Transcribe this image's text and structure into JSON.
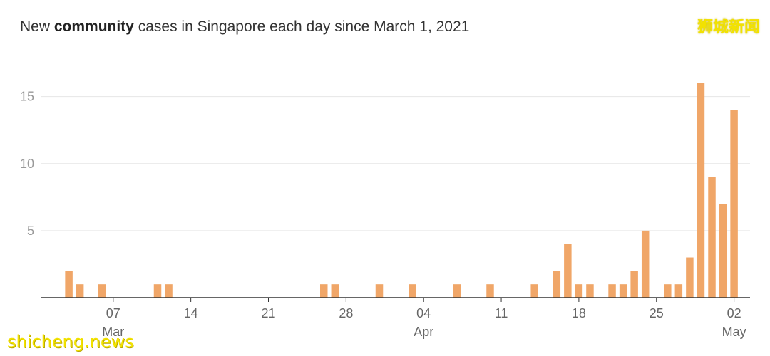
{
  "title": {
    "prefix": "New ",
    "bold": "community",
    "suffix": " cases in Singapore each day since March 1, 2021"
  },
  "watermarks": {
    "top_right": "狮城新闻",
    "bottom_left": "shicheng.news"
  },
  "colors": {
    "bar": "#f0a668",
    "grid": "#e6e6e6",
    "axis": "#333333"
  },
  "chart_data": {
    "type": "bar",
    "title": "New community cases in Singapore each day since March 1, 2021",
    "xlabel": "",
    "ylabel": "",
    "ylim": [
      0,
      17
    ],
    "yticks": [
      5,
      10,
      15
    ],
    "grid": true,
    "legend": "none",
    "x_start": "2021-03-01",
    "x_end": "2021-05-03",
    "xticks": [
      {
        "date": "2021-03-07",
        "label": "07",
        "month": "Mar"
      },
      {
        "date": "2021-03-14",
        "label": "14",
        "month": ""
      },
      {
        "date": "2021-03-21",
        "label": "21",
        "month": ""
      },
      {
        "date": "2021-03-28",
        "label": "28",
        "month": ""
      },
      {
        "date": "2021-04-04",
        "label": "04",
        "month": "Apr"
      },
      {
        "date": "2021-04-11",
        "label": "11",
        "month": ""
      },
      {
        "date": "2021-04-18",
        "label": "18",
        "month": ""
      },
      {
        "date": "2021-04-25",
        "label": "25",
        "month": ""
      },
      {
        "date": "2021-05-02",
        "label": "02",
        "month": "May"
      }
    ],
    "series": [
      {
        "points": [
          {
            "date": "2021-03-03",
            "value": 2
          },
          {
            "date": "2021-03-04",
            "value": 1
          },
          {
            "date": "2021-03-06",
            "value": 1
          },
          {
            "date": "2021-03-11",
            "value": 1
          },
          {
            "date": "2021-03-12",
            "value": 1
          },
          {
            "date": "2021-03-26",
            "value": 1
          },
          {
            "date": "2021-03-27",
            "value": 1
          },
          {
            "date": "2021-03-31",
            "value": 1
          },
          {
            "date": "2021-04-03",
            "value": 1
          },
          {
            "date": "2021-04-07",
            "value": 1
          },
          {
            "date": "2021-04-10",
            "value": 1
          },
          {
            "date": "2021-04-14",
            "value": 1
          },
          {
            "date": "2021-04-16",
            "value": 2
          },
          {
            "date": "2021-04-17",
            "value": 4
          },
          {
            "date": "2021-04-18",
            "value": 1
          },
          {
            "date": "2021-04-19",
            "value": 1
          },
          {
            "date": "2021-04-21",
            "value": 1
          },
          {
            "date": "2021-04-22",
            "value": 1
          },
          {
            "date": "2021-04-23",
            "value": 2
          },
          {
            "date": "2021-04-24",
            "value": 5
          },
          {
            "date": "2021-04-26",
            "value": 1
          },
          {
            "date": "2021-04-27",
            "value": 1
          },
          {
            "date": "2021-04-28",
            "value": 3
          },
          {
            "date": "2021-04-29",
            "value": 16
          },
          {
            "date": "2021-04-30",
            "value": 9
          },
          {
            "date": "2021-05-01",
            "value": 7
          },
          {
            "date": "2021-05-02",
            "value": 14
          }
        ]
      }
    ]
  }
}
